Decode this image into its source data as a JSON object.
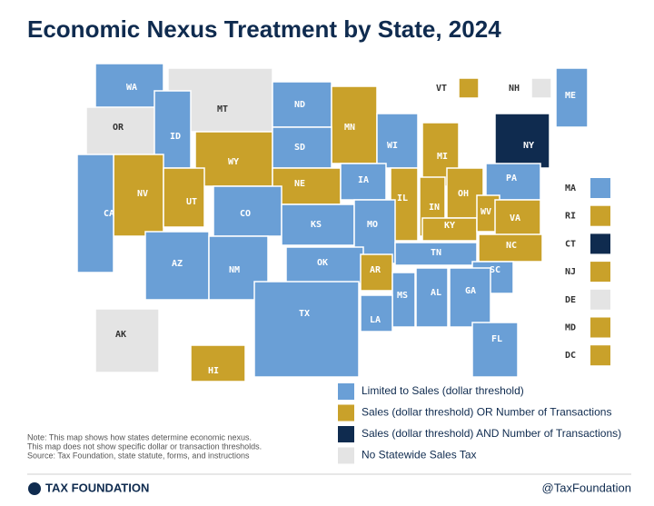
{
  "title": "Economic Nexus Treatment by State, 2024",
  "legend": [
    {
      "label": "Limited to Sales (dollar threshold)",
      "color": "#6a9fd6"
    },
    {
      "label": "Sales (dollar threshold) OR Number of Transactions",
      "color": "#c9a12a"
    },
    {
      "label": "Sales (dollar threshold) AND Number of Transactions)",
      "color": "#0f2b4f"
    },
    {
      "label": "No Statewide Sales Tax",
      "color": "#e4e4e4"
    }
  ],
  "states": [
    {
      "label": "WA",
      "category": 0
    },
    {
      "label": "OR",
      "category": 3
    },
    {
      "label": "MT",
      "category": 3
    },
    {
      "label": "ND",
      "category": 0
    },
    {
      "label": "MN",
      "category": 1
    },
    {
      "label": "VT",
      "category": 1
    },
    {
      "label": "NH",
      "category": 3
    },
    {
      "label": "ME",
      "category": 0
    },
    {
      "label": "ID",
      "category": 0
    },
    {
      "label": "WY",
      "category": 1
    },
    {
      "label": "SD",
      "category": 0
    },
    {
      "label": "WI",
      "category": 0
    },
    {
      "label": "MI",
      "category": 1
    },
    {
      "label": "NY",
      "category": 2
    },
    {
      "label": "NV",
      "category": 1
    },
    {
      "label": "UT",
      "category": 1
    },
    {
      "label": "NE",
      "category": 1
    },
    {
      "label": "IA",
      "category": 0
    },
    {
      "label": "IL",
      "category": 1
    },
    {
      "label": "IN",
      "category": 1
    },
    {
      "label": "OH",
      "category": 1
    },
    {
      "label": "PA",
      "category": 0
    },
    {
      "label": "CA",
      "category": 0
    },
    {
      "label": "CO",
      "category": 0
    },
    {
      "label": "KS",
      "category": 0
    },
    {
      "label": "MO",
      "category": 0
    },
    {
      "label": "KY",
      "category": 1
    },
    {
      "label": "WV",
      "category": 1
    },
    {
      "label": "VA",
      "category": 1
    },
    {
      "label": "AZ",
      "category": 0
    },
    {
      "label": "NM",
      "category": 0
    },
    {
      "label": "OK",
      "category": 0
    },
    {
      "label": "AR",
      "category": 1
    },
    {
      "label": "TN",
      "category": 0
    },
    {
      "label": "NC",
      "category": 1
    },
    {
      "label": "SC",
      "category": 0
    },
    {
      "label": "TX",
      "category": 0
    },
    {
      "label": "MS",
      "category": 0
    },
    {
      "label": "AL",
      "category": 0
    },
    {
      "label": "GA",
      "category": 0
    },
    {
      "label": "LA",
      "category": 0
    },
    {
      "label": "FL",
      "category": 0
    },
    {
      "label": "AK",
      "category": 3
    },
    {
      "label": "HI",
      "category": 1
    }
  ],
  "small_states": [
    {
      "label": "MA",
      "category": 0
    },
    {
      "label": "RI",
      "category": 1
    },
    {
      "label": "CT",
      "category": 2
    },
    {
      "label": "NJ",
      "category": 1
    },
    {
      "label": "DE",
      "category": 3
    },
    {
      "label": "MD",
      "category": 1
    },
    {
      "label": "DC",
      "category": 1
    }
  ],
  "note": [
    "Note: This map shows how states determine economic nexus.",
    "This map does not show specific dollar or transaction thresholds.",
    "Source: Tax Foundation, state statute, forms, and instructions"
  ],
  "footer": {
    "logo": "TAX FOUNDATION",
    "handle": "@TaxFoundation"
  }
}
